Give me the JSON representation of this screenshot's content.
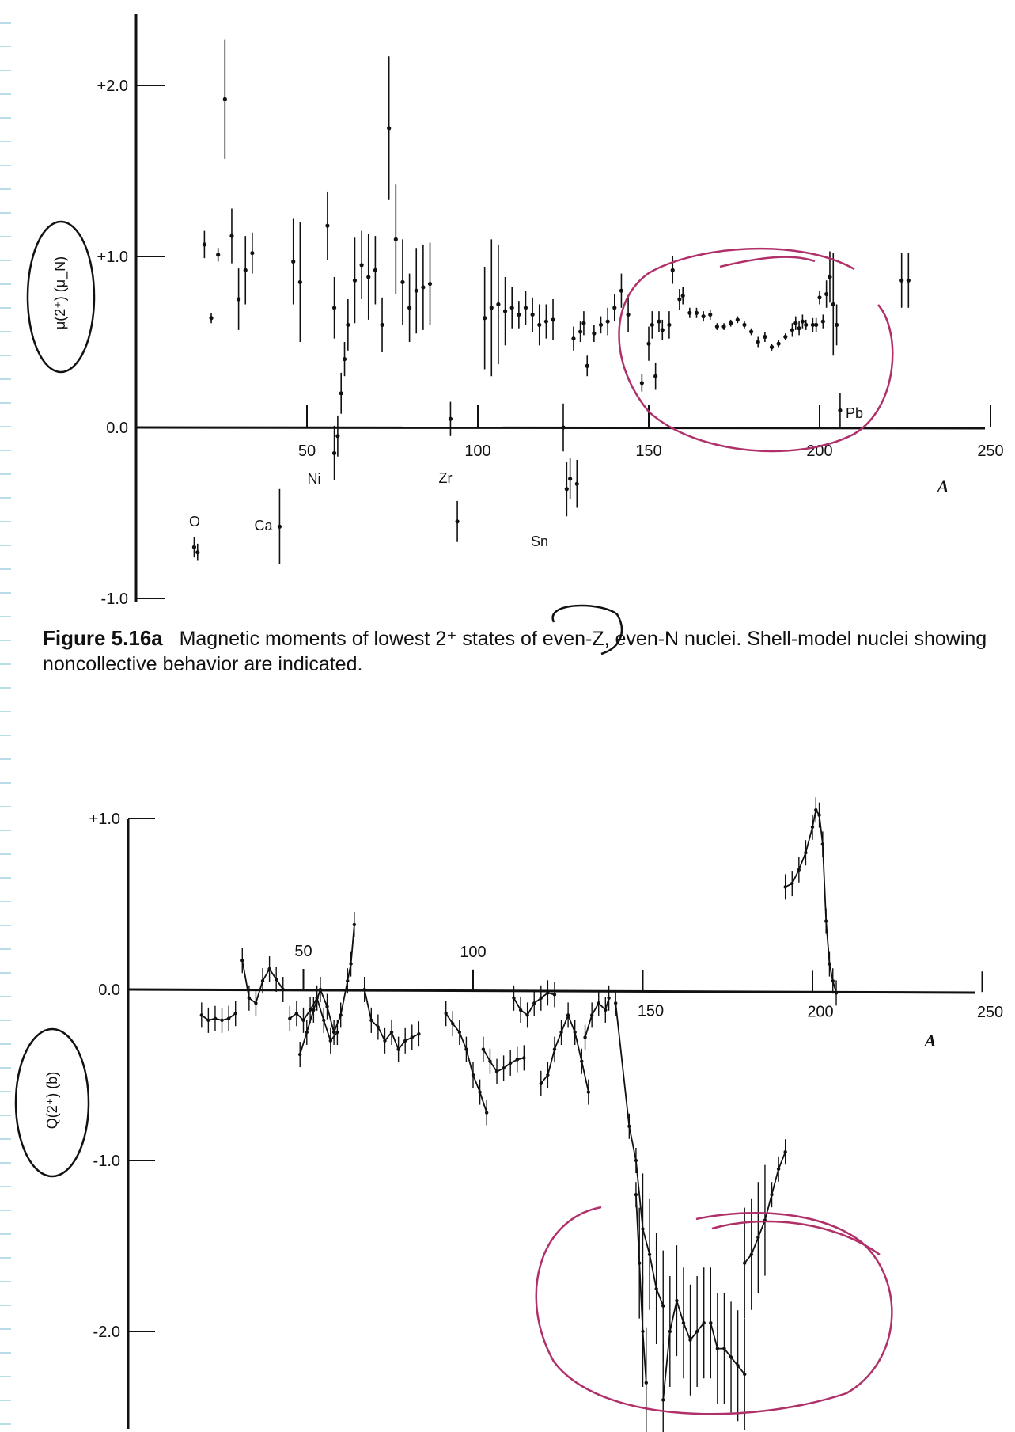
{
  "caption": {
    "figure_label": "Figure 5.16a",
    "text": "Magnetic moments of lowest 2⁺ states of even-Z, even-N nuclei. Shell-model nuclei showing noncollective behavior are indicated."
  },
  "colors": {
    "ink": "#111111",
    "annotation": "#b0306a",
    "margin_dash": "#b8dce8"
  },
  "chart_data": [
    {
      "type": "scatter",
      "title": "",
      "xlabel": "A",
      "ylabel": "μ(2⁺) (μ_N)",
      "xlim": [
        0,
        250
      ],
      "ylim": [
        -1.0,
        2.4
      ],
      "x_ticks": [
        50,
        100,
        150,
        200,
        250
      ],
      "y_ticks": [
        "+2.0",
        "+1.0",
        "0.0",
        "-1.0"
      ],
      "annotations": [
        "O",
        "Ca",
        "Ni",
        "Zr",
        "Sn",
        "Pb"
      ],
      "points": [
        [
          17,
          -0.7,
          0.06
        ],
        [
          18,
          -0.73,
          0.05
        ],
        [
          20,
          1.07,
          0.08
        ],
        [
          22,
          0.64,
          0.03
        ],
        [
          24,
          1.01,
          0.04
        ],
        [
          26,
          1.92,
          0.35
        ],
        [
          28,
          1.12,
          0.16
        ],
        [
          30,
          0.75,
          0.18
        ],
        [
          32,
          0.92,
          0.2
        ],
        [
          34,
          1.02,
          0.12
        ],
        [
          42,
          -0.58,
          0.22
        ],
        [
          46,
          0.97,
          0.25
        ],
        [
          48,
          0.85,
          0.35
        ],
        [
          56,
          1.18,
          0.2
        ],
        [
          58,
          0.7,
          0.18
        ],
        [
          58,
          -0.15,
          0.16
        ],
        [
          59,
          -0.05,
          0.12
        ],
        [
          60,
          0.2,
          0.12
        ],
        [
          61,
          0.4,
          0.1
        ],
        [
          62,
          0.6,
          0.15
        ],
        [
          64,
          0.86,
          0.25
        ],
        [
          66,
          0.95,
          0.2
        ],
        [
          68,
          0.88,
          0.25
        ],
        [
          70,
          0.92,
          0.2
        ],
        [
          72,
          0.6,
          0.16
        ],
        [
          74,
          1.75,
          0.42
        ],
        [
          76,
          1.1,
          0.32
        ],
        [
          78,
          0.85,
          0.25
        ],
        [
          80,
          0.7,
          0.2
        ],
        [
          82,
          0.8,
          0.25
        ],
        [
          84,
          0.82,
          0.25
        ],
        [
          86,
          0.84,
          0.24
        ],
        [
          92,
          0.05,
          0.1
        ],
        [
          94,
          -0.55,
          0.12
        ],
        [
          102,
          0.64,
          0.3
        ],
        [
          104,
          0.7,
          0.4
        ],
        [
          106,
          0.72,
          0.35
        ],
        [
          108,
          0.68,
          0.2
        ],
        [
          110,
          0.7,
          0.12
        ],
        [
          112,
          0.66,
          0.08
        ],
        [
          114,
          0.7,
          0.1
        ],
        [
          116,
          0.66,
          0.1
        ],
        [
          118,
          0.6,
          0.12
        ],
        [
          120,
          0.62,
          0.1
        ],
        [
          122,
          0.63,
          0.12
        ],
        [
          125,
          0.0,
          0.14
        ],
        [
          126,
          -0.36,
          0.16
        ],
        [
          127,
          -0.3,
          0.12
        ],
        [
          128,
          0.52,
          0.07
        ],
        [
          129,
          -0.33,
          0.14
        ],
        [
          130,
          0.56,
          0.06
        ],
        [
          131,
          0.61,
          0.07
        ],
        [
          132,
          0.36,
          0.06
        ],
        [
          134,
          0.55,
          0.05
        ],
        [
          136,
          0.6,
          0.05
        ],
        [
          138,
          0.62,
          0.08
        ],
        [
          140,
          0.7,
          0.08
        ],
        [
          142,
          0.8,
          0.1
        ],
        [
          144,
          0.66,
          0.1
        ],
        [
          148,
          0.26,
          0.05
        ],
        [
          150,
          0.49,
          0.1
        ],
        [
          151,
          0.6,
          0.08
        ],
        [
          152,
          0.3,
          0.08
        ],
        [
          153,
          0.62,
          0.06
        ],
        [
          154,
          0.57,
          0.06
        ],
        [
          156,
          0.6,
          0.08
        ],
        [
          157,
          0.92,
          0.08
        ],
        [
          159,
          0.75,
          0.06
        ],
        [
          160,
          0.77,
          0.05
        ],
        [
          162,
          0.67,
          0.03
        ],
        [
          164,
          0.67,
          0.03
        ],
        [
          166,
          0.65,
          0.03
        ],
        [
          168,
          0.66,
          0.03
        ],
        [
          170,
          0.59,
          0.02
        ],
        [
          172,
          0.59,
          0.02
        ],
        [
          174,
          0.61,
          0.02
        ],
        [
          176,
          0.63,
          0.02
        ],
        [
          178,
          0.6,
          0.02
        ],
        [
          180,
          0.56,
          0.02
        ],
        [
          182,
          0.5,
          0.03
        ],
        [
          184,
          0.53,
          0.03
        ],
        [
          186,
          0.47,
          0.02
        ],
        [
          188,
          0.49,
          0.02
        ],
        [
          190,
          0.53,
          0.02
        ],
        [
          192,
          0.57,
          0.04
        ],
        [
          193,
          0.61,
          0.04
        ],
        [
          194,
          0.58,
          0.04
        ],
        [
          195,
          0.62,
          0.04
        ],
        [
          196,
          0.6,
          0.03
        ],
        [
          198,
          0.6,
          0.04
        ],
        [
          199,
          0.6,
          0.04
        ],
        [
          200,
          0.76,
          0.04
        ],
        [
          201,
          0.62,
          0.04
        ],
        [
          202,
          0.78,
          0.08
        ],
        [
          203,
          0.88,
          0.15
        ],
        [
          204,
          0.72,
          0.3
        ],
        [
          205,
          0.6,
          0.12
        ],
        [
          206,
          0.1,
          0.1
        ],
        [
          224,
          0.86,
          0.16
        ],
        [
          226,
          0.86,
          0.16
        ]
      ]
    },
    {
      "type": "line",
      "title": "",
      "xlabel": "A",
      "ylabel": "Q(2⁺) (b)",
      "xlim": [
        0,
        250
      ],
      "ylim": [
        -2.6,
        1.1
      ],
      "x_ticks": [
        50,
        100,
        150,
        200,
        250
      ],
      "y_ticks": [
        "+1.0",
        "0.0",
        "-1.0",
        "-2.0"
      ],
      "series": [
        {
          "values": [
            [
              20,
              -0.15
            ],
            [
              22,
              -0.18
            ],
            [
              24,
              -0.17
            ],
            [
              26,
              -0.18
            ],
            [
              28,
              -0.17
            ],
            [
              30,
              -0.14
            ]
          ]
        },
        {
          "values": [
            [
              32,
              0.17
            ],
            [
              34,
              -0.05
            ],
            [
              36,
              -0.08
            ],
            [
              38,
              0.05
            ],
            [
              40,
              0.12
            ],
            [
              42,
              0.06
            ],
            [
              44,
              0.0
            ]
          ]
        },
        {
          "values": [
            [
              46,
              -0.17
            ],
            [
              48,
              -0.14
            ],
            [
              50,
              -0.18
            ],
            [
              52,
              -0.12
            ],
            [
              54,
              -0.05
            ],
            [
              56,
              -0.18
            ],
            [
              58,
              -0.3
            ],
            [
              60,
              -0.25
            ]
          ]
        },
        {
          "values": [
            [
              49,
              -0.38
            ],
            [
              51,
              -0.25
            ],
            [
              53,
              -0.12
            ],
            [
              55,
              0.0
            ],
            [
              57,
              -0.1
            ],
            [
              59,
              -0.25
            ],
            [
              61,
              -0.15
            ],
            [
              63,
              0.05
            ],
            [
              64,
              0.15
            ],
            [
              65,
              0.38
            ]
          ]
        },
        {
          "values": [
            [
              68,
              0.0
            ],
            [
              70,
              -0.18
            ],
            [
              72,
              -0.22
            ],
            [
              74,
              -0.3
            ],
            [
              76,
              -0.25
            ],
            [
              78,
              -0.35
            ],
            [
              80,
              -0.3
            ],
            [
              82,
              -0.28
            ],
            [
              84,
              -0.26
            ]
          ]
        },
        {
          "values": [
            [
              92,
              -0.14
            ],
            [
              94,
              -0.2
            ],
            [
              96,
              -0.25
            ],
            [
              98,
              -0.35
            ],
            [
              100,
              -0.5
            ],
            [
              102,
              -0.6
            ],
            [
              104,
              -0.72
            ]
          ]
        },
        {
          "values": [
            [
              103,
              -0.35
            ],
            [
              105,
              -0.42
            ],
            [
              107,
              -0.48
            ],
            [
              109,
              -0.46
            ],
            [
              111,
              -0.43
            ],
            [
              113,
              -0.41
            ],
            [
              115,
              -0.4
            ]
          ]
        },
        {
          "values": [
            [
              112,
              -0.05
            ],
            [
              114,
              -0.12
            ],
            [
              116,
              -0.15
            ],
            [
              118,
              -0.08
            ],
            [
              120,
              -0.05
            ],
            [
              122,
              -0.02
            ],
            [
              124,
              -0.03
            ]
          ]
        },
        {
          "values": [
            [
              120,
              -0.55
            ],
            [
              122,
              -0.5
            ],
            [
              124,
              -0.35
            ],
            [
              126,
              -0.25
            ],
            [
              128,
              -0.15
            ],
            [
              130,
              -0.25
            ],
            [
              132,
              -0.42
            ],
            [
              134,
              -0.6
            ]
          ]
        },
        {
          "values": [
            [
              133,
              -0.28
            ],
            [
              135,
              -0.15
            ],
            [
              137,
              -0.08
            ],
            [
              139,
              -0.12
            ],
            [
              140,
              -0.05
            ]
          ]
        },
        {
          "values": [
            [
              142,
              -0.08
            ],
            [
              146,
              -0.8
            ],
            [
              148,
              -1.0
            ],
            [
              150,
              -1.4
            ],
            [
              152,
              -1.55
            ],
            [
              154,
              -1.75
            ],
            [
              156,
              -1.85
            ]
          ]
        },
        {
          "values": [
            [
              148,
              -1.2
            ],
            [
              149,
              -1.6
            ],
            [
              150,
              -2.0
            ],
            [
              151,
              -2.3
            ]
          ]
        },
        {
          "values": [
            [
              156,
              -2.4
            ],
            [
              158,
              -2.0
            ],
            [
              160,
              -1.82
            ],
            [
              162,
              -1.95
            ],
            [
              164,
              -2.05
            ],
            [
              166,
              -2.0
            ],
            [
              168,
              -1.95
            ]
          ]
        },
        {
          "values": [
            [
              170,
              -1.95
            ],
            [
              172,
              -2.1
            ],
            [
              174,
              -2.1
            ],
            [
              176,
              -2.15
            ],
            [
              178,
              -2.2
            ],
            [
              180,
              -2.25
            ]
          ]
        },
        {
          "values": [
            [
              180,
              -1.6
            ],
            [
              182,
              -1.55
            ],
            [
              184,
              -1.45
            ],
            [
              186,
              -1.35
            ],
            [
              188,
              -1.2
            ],
            [
              190,
              -1.05
            ],
            [
              192,
              -0.95
            ]
          ]
        },
        {
          "values": [
            [
              192,
              0.6
            ],
            [
              194,
              0.62
            ],
            [
              196,
              0.7
            ],
            [
              198,
              0.8
            ],
            [
              200,
              0.95
            ],
            [
              201,
              1.05
            ],
            [
              202,
              1.02
            ],
            [
              203,
              0.85
            ],
            [
              204,
              0.4
            ],
            [
              205,
              0.15
            ],
            [
              206,
              0.05
            ],
            [
              207,
              -0.02
            ]
          ]
        }
      ]
    }
  ]
}
